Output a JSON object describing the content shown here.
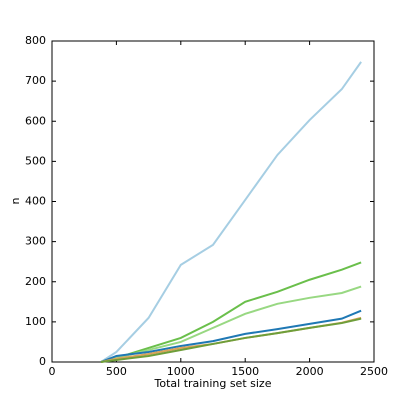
{
  "chart_data": {
    "type": "line",
    "xlabel": "Total training set size",
    "ylabel": "n",
    "x": [
      380,
      500,
      750,
      1000,
      1250,
      1500,
      1750,
      2000,
      2250,
      2400
    ],
    "series": [
      {
        "color": "#a6cee3",
        "values": [
          0,
          25,
          110,
          242,
          292,
          404,
          516,
          603,
          680,
          748
        ]
      },
      {
        "color": "#6abf4b",
        "values": [
          0,
          10,
          35,
          60,
          100,
          150,
          175,
          205,
          230,
          248
        ]
      },
      {
        "color": "#98d882",
        "values": [
          0,
          10,
          30,
          50,
          85,
          120,
          145,
          160,
          172,
          188
        ]
      },
      {
        "color": "#1f78b4",
        "values": [
          0,
          15,
          25,
          40,
          52,
          70,
          82,
          95,
          108,
          128
        ]
      },
      {
        "color": "#d9a35a",
        "values": [
          0,
          8,
          20,
          35,
          45,
          60,
          72,
          85,
          98,
          110
        ]
      },
      {
        "color": "#6e9e3a",
        "values": [
          0,
          5,
          15,
          30,
          45,
          60,
          72,
          85,
          97,
          108
        ]
      }
    ],
    "xlim": [
      0,
      2500
    ],
    "xticks": [
      0,
      500,
      1000,
      1500,
      2000,
      2500
    ],
    "ylim": [
      0,
      800
    ],
    "yticks": [
      0,
      100,
      200,
      300,
      400,
      500,
      600,
      700,
      800
    ]
  }
}
